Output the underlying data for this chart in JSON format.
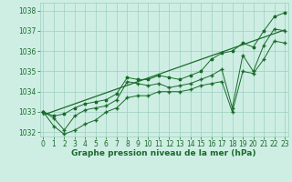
{
  "xlabel": "Graphe pression niveau de la mer (hPa)",
  "x": [
    0,
    1,
    2,
    3,
    4,
    5,
    6,
    7,
    8,
    9,
    10,
    11,
    12,
    13,
    14,
    15,
    16,
    17,
    18,
    19,
    20,
    21,
    22,
    23
  ],
  "y_main": [
    1033.0,
    1032.7,
    1032.1,
    1032.8,
    1033.1,
    1033.2,
    1033.3,
    1033.6,
    1034.5,
    1034.4,
    1034.3,
    1034.4,
    1034.2,
    1034.3,
    1034.4,
    1034.6,
    1034.8,
    1035.1,
    1033.2,
    1035.8,
    1035.0,
    1036.3,
    1037.1,
    1037.0
  ],
  "y_upper": [
    1033.0,
    1032.8,
    1032.9,
    1033.2,
    1033.4,
    1033.5,
    1033.6,
    1033.9,
    1034.7,
    1034.6,
    1034.6,
    1034.8,
    1034.7,
    1034.6,
    1034.8,
    1035.0,
    1035.6,
    1035.9,
    1036.0,
    1036.4,
    1036.2,
    1037.0,
    1037.7,
    1037.9
  ],
  "y_lower": [
    1033.0,
    1032.3,
    1031.9,
    1032.1,
    1032.4,
    1032.6,
    1033.0,
    1033.2,
    1033.7,
    1033.8,
    1033.8,
    1034.0,
    1034.0,
    1034.0,
    1034.1,
    1034.3,
    1034.4,
    1034.5,
    1033.0,
    1035.0,
    1034.9,
    1035.6,
    1036.5,
    1036.4
  ],
  "trend_x": [
    0,
    23
  ],
  "trend_y": [
    1032.85,
    1037.05
  ],
  "ylim": [
    1031.8,
    1038.4
  ],
  "xlim": [
    -0.3,
    23.3
  ],
  "bg_color": "#ceeee4",
  "grid_color": "#9ecfbf",
  "line_color": "#1a6b2a",
  "trend_color": "#1a6b2a",
  "marker_color": "#1a6b2a",
  "tick_fontsize": 5.5,
  "label_fontsize": 6.5,
  "yticks": [
    1032,
    1033,
    1034,
    1035,
    1036,
    1037,
    1038
  ],
  "xticks": [
    0,
    1,
    2,
    3,
    4,
    5,
    6,
    7,
    8,
    9,
    10,
    11,
    12,
    13,
    14,
    15,
    16,
    17,
    18,
    19,
    20,
    21,
    22,
    23
  ]
}
